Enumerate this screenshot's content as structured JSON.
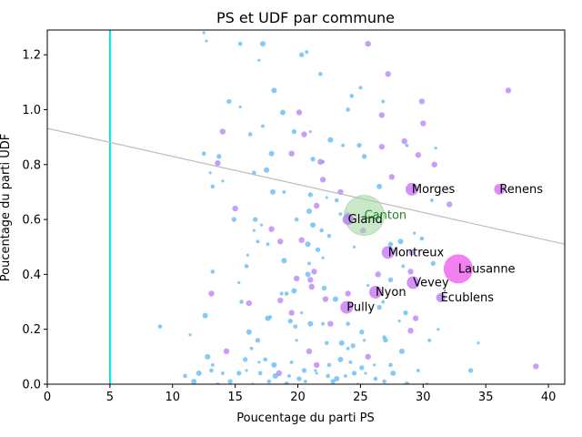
{
  "chart_data": {
    "type": "scatter",
    "title": "PS et UDF par commune",
    "xlabel": "Poucentage du parti PS",
    "ylabel": "Poucentage du parti UDF",
    "xlim": [
      0,
      41.3
    ],
    "ylim": [
      0,
      1.29
    ],
    "x_ticks": [
      0,
      5,
      10,
      15,
      20,
      25,
      30,
      35,
      40
    ],
    "y_ticks": [
      0.0,
      0.2,
      0.4,
      0.6,
      0.8,
      1.0,
      1.2
    ],
    "x_tick_labels": [
      "0",
      "5",
      "10",
      "15",
      "20",
      "25",
      "30",
      "35",
      "40"
    ],
    "y_tick_labels": [
      "0.0",
      "0.2",
      "0.4",
      "0.6",
      "0.8",
      "1.0",
      "1.2"
    ],
    "grid": false,
    "colors": {
      "small_points": "#5bb8f5",
      "medium_points": "#b47ff5",
      "large_points": "#ee60ee",
      "canton_point": "#9cd39c",
      "vertical_line": "#00e5e5",
      "regression_line": "#bdbdbd",
      "canton_label": "#228b22"
    },
    "vertical_line": {
      "x": 5
    },
    "regression_line": {
      "x": [
        0,
        41.3
      ],
      "y": [
        0.932,
        0.51
      ]
    },
    "labeled_points": [
      {
        "name": "Lausanne",
        "x": 32.8,
        "y": 0.42,
        "r": 16,
        "color": "#ee60ee"
      },
      {
        "name": "Renens",
        "x": 36.1,
        "y": 0.71,
        "r": 6,
        "color": "#d070f5"
      },
      {
        "name": "Morges",
        "x": 29.1,
        "y": 0.71,
        "r": 7,
        "color": "#c778f5"
      },
      {
        "name": "Gland",
        "x": 24.0,
        "y": 0.6,
        "r": 6,
        "color": "#b47ff5"
      },
      {
        "name": "Montreux",
        "x": 27.2,
        "y": 0.48,
        "r": 7,
        "color": "#c778f5"
      },
      {
        "name": "Vevey",
        "x": 29.2,
        "y": 0.37,
        "r": 7,
        "color": "#c778f5"
      },
      {
        "name": "Nyon",
        "x": 26.2,
        "y": 0.335,
        "r": 7,
        "color": "#c778f5"
      },
      {
        "name": "Écublens",
        "x": 31.4,
        "y": 0.315,
        "r": 5,
        "color": "#b47ff5"
      },
      {
        "name": "Pully",
        "x": 23.9,
        "y": 0.28,
        "r": 7,
        "color": "#c778f5"
      }
    ],
    "canton_point": {
      "name": "Canton",
      "x": 25.3,
      "y": 0.615,
      "r": 22,
      "color": "#9cd39c"
    },
    "medium_points": [
      [
        25.6,
        1.24
      ],
      [
        29.9,
        1.03
      ],
      [
        36.8,
        1.07
      ],
      [
        27.2,
        1.13
      ],
      [
        20.1,
        0.99
      ],
      [
        26.7,
        0.98
      ],
      [
        30.0,
        0.95
      ],
      [
        20.5,
        0.91
      ],
      [
        28.5,
        0.885
      ],
      [
        26.7,
        0.865
      ],
      [
        19.5,
        0.84
      ],
      [
        29.6,
        0.835
      ],
      [
        21.8,
        0.81
      ],
      [
        13.6,
        0.805
      ],
      [
        30.9,
        0.8
      ],
      [
        27.5,
        0.755
      ],
      [
        22.0,
        0.745
      ],
      [
        23.4,
        0.7
      ],
      [
        21.5,
        0.65
      ],
      [
        32.1,
        0.655
      ],
      [
        24.0,
        0.615
      ],
      [
        25.2,
        0.56
      ],
      [
        17.9,
        0.565
      ],
      [
        20.3,
        0.525
      ],
      [
        29.1,
        0.48
      ],
      [
        18.6,
        0.52
      ],
      [
        26.4,
        0.4
      ],
      [
        29.0,
        0.41
      ],
      [
        19.9,
        0.385
      ],
      [
        21.0,
        0.38
      ],
      [
        21.3,
        0.41
      ],
      [
        21.1,
        0.355
      ],
      [
        24.0,
        0.33
      ],
      [
        22.2,
        0.31
      ],
      [
        18.6,
        0.305
      ],
      [
        19.5,
        0.26
      ],
      [
        13.1,
        0.33
      ],
      [
        16.1,
        0.295
      ],
      [
        29.4,
        0.24
      ],
      [
        22.6,
        0.22
      ],
      [
        29.0,
        0.195
      ],
      [
        20.9,
        0.12
      ],
      [
        21.5,
        0.07
      ],
      [
        39.0,
        0.065
      ],
      [
        14.3,
        0.12
      ],
      [
        15.0,
        0.64
      ],
      [
        14.0,
        0.92
      ],
      [
        18.5,
        0.04
      ],
      [
        25.6,
        0.1
      ]
    ],
    "small_points": [
      [
        12.5,
        1.28
      ],
      [
        15.4,
        1.24
      ],
      [
        17.2,
        1.24
      ],
      [
        20.7,
        1.21
      ],
      [
        20.3,
        1.2
      ],
      [
        16.9,
        1.18
      ],
      [
        21.8,
        1.13
      ],
      [
        18.1,
        1.07
      ],
      [
        25.0,
        1.08
      ],
      [
        14.5,
        1.03
      ],
      [
        15.4,
        1.01
      ],
      [
        24.0,
        1.0
      ],
      [
        18.8,
        0.99
      ],
      [
        26.8,
        1.03
      ],
      [
        19.7,
        0.92
      ],
      [
        21.0,
        0.92
      ],
      [
        16.2,
        0.91
      ],
      [
        22.6,
        0.89
      ],
      [
        23.6,
        0.87
      ],
      [
        24.9,
        0.87
      ],
      [
        31.0,
        0.86
      ],
      [
        12.5,
        0.84
      ],
      [
        17.9,
        0.84
      ],
      [
        22.0,
        0.81
      ],
      [
        21.2,
        0.82
      ],
      [
        13.0,
        0.77
      ],
      [
        16.5,
        0.77
      ],
      [
        17.5,
        0.78
      ],
      [
        28.7,
        0.87
      ],
      [
        25.3,
        0.83
      ],
      [
        14.0,
        0.74
      ],
      [
        13.2,
        0.72
      ],
      [
        18.0,
        0.7
      ],
      [
        18.9,
        0.7
      ],
      [
        21.0,
        0.69
      ],
      [
        22.3,
        0.68
      ],
      [
        23.1,
        0.67
      ],
      [
        26.5,
        0.72
      ],
      [
        30.7,
        0.67
      ],
      [
        16.6,
        0.6
      ],
      [
        17.1,
        0.58
      ],
      [
        19.9,
        0.6
      ],
      [
        20.9,
        0.63
      ],
      [
        23.4,
        0.62
      ],
      [
        14.9,
        0.6
      ],
      [
        16.5,
        0.56
      ],
      [
        21.9,
        0.56
      ],
      [
        20.8,
        0.51
      ],
      [
        16.8,
        0.52
      ],
      [
        27.4,
        0.51
      ],
      [
        29.3,
        0.55
      ],
      [
        29.9,
        0.53
      ],
      [
        28.2,
        0.52
      ],
      [
        17.6,
        0.51
      ],
      [
        21.6,
        0.49
      ],
      [
        16.0,
        0.47
      ],
      [
        15.9,
        0.43
      ],
      [
        18.9,
        0.45
      ],
      [
        28.4,
        0.43
      ],
      [
        30.8,
        0.44
      ],
      [
        22.0,
        0.46
      ],
      [
        13.2,
        0.41
      ],
      [
        20.8,
        0.4
      ],
      [
        20.9,
        0.44
      ],
      [
        27.4,
        0.38
      ],
      [
        15.3,
        0.37
      ],
      [
        19.1,
        0.33
      ],
      [
        19.7,
        0.34
      ],
      [
        18.7,
        0.33
      ],
      [
        22.1,
        0.35
      ],
      [
        25.6,
        0.36
      ],
      [
        15.5,
        0.3
      ],
      [
        17.6,
        0.24
      ],
      [
        17.8,
        0.245
      ],
      [
        19.4,
        0.23
      ],
      [
        20.3,
        0.26
      ],
      [
        19.8,
        0.21
      ],
      [
        21.0,
        0.22
      ],
      [
        22.0,
        0.22
      ],
      [
        26.5,
        0.28
      ],
      [
        28.1,
        0.23
      ],
      [
        24.0,
        0.22
      ],
      [
        16.1,
        0.19
      ],
      [
        16.3,
        0.13
      ],
      [
        16.8,
        0.16
      ],
      [
        19.9,
        0.16
      ],
      [
        22.3,
        0.15
      ],
      [
        23.5,
        0.15
      ],
      [
        24.0,
        0.13
      ],
      [
        24.4,
        0.14
      ],
      [
        25.3,
        0.16
      ],
      [
        26.9,
        0.17
      ],
      [
        28.3,
        0.12
      ],
      [
        30.5,
        0.16
      ],
      [
        25.1,
        0.19
      ],
      [
        11.4,
        0.18
      ],
      [
        9.0,
        0.21
      ],
      [
        12.8,
        0.1
      ],
      [
        13.2,
        0.07
      ],
      [
        15.8,
        0.09
      ],
      [
        16.9,
        0.08
      ],
      [
        17.4,
        0.09
      ],
      [
        18.1,
        0.07
      ],
      [
        19.5,
        0.08
      ],
      [
        20.5,
        0.05
      ],
      [
        21.4,
        0.05
      ],
      [
        22.5,
        0.07
      ],
      [
        23.4,
        0.09
      ],
      [
        24.2,
        0.08
      ],
      [
        25.1,
        0.06
      ],
      [
        26.1,
        0.07
      ],
      [
        27.4,
        0.07
      ],
      [
        12.1,
        0.04
      ],
      [
        14.0,
        0.04
      ],
      [
        15.3,
        0.04
      ],
      [
        15.9,
        0.05
      ],
      [
        17.0,
        0.04
      ],
      [
        18.2,
        0.03
      ],
      [
        19.3,
        0.03
      ],
      [
        20.1,
        0.02
      ],
      [
        21.5,
        0.04
      ],
      [
        22.4,
        0.03
      ],
      [
        23.1,
        0.02
      ],
      [
        23.8,
        0.03
      ],
      [
        24.5,
        0.04
      ],
      [
        25.4,
        0.04
      ],
      [
        26.2,
        0.02
      ],
      [
        27.6,
        0.04
      ],
      [
        29.6,
        0.05
      ],
      [
        33.8,
        0.05
      ],
      [
        34.4,
        0.15
      ],
      [
        11.0,
        0.03
      ],
      [
        11.7,
        0.01
      ],
      [
        13.6,
        0.0
      ],
      [
        14.6,
        0.01
      ],
      [
        16.4,
        0.0
      ],
      [
        17.7,
        0.01
      ],
      [
        19.1,
        0.0
      ],
      [
        20.6,
        0.01
      ],
      [
        22.8,
        0.01
      ],
      [
        24.8,
        0.0
      ],
      [
        26.9,
        0.01
      ],
      [
        28.7,
        0.0
      ],
      [
        30.3,
        0.0
      ],
      [
        13.7,
        0.83
      ],
      [
        12.7,
        1.25
      ],
      [
        24.3,
        1.05
      ],
      [
        23.0,
        0.31
      ],
      [
        26.8,
        0.3
      ],
      [
        28.6,
        0.26
      ],
      [
        31.2,
        0.2
      ],
      [
        13.1,
        0.05
      ],
      [
        12.6,
        0.25
      ],
      [
        17.2,
        0.94
      ],
      [
        27.0,
        0.16
      ],
      [
        24.5,
        0.5
      ],
      [
        22.5,
        0.54
      ],
      [
        21.2,
        0.58
      ]
    ]
  }
}
